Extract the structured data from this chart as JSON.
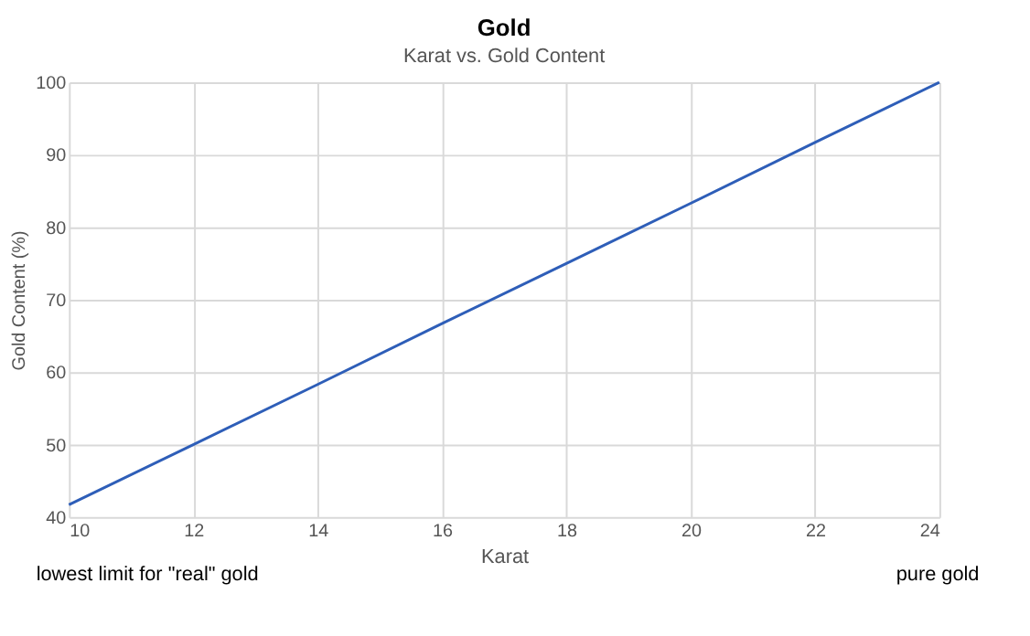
{
  "chart_data": {
    "type": "line",
    "title": "Gold",
    "subtitle": "Karat vs. Gold Content",
    "xlabel": "Karat",
    "ylabel": "Gold Content (%)",
    "x": [
      10,
      12,
      14,
      16,
      18,
      20,
      22,
      24
    ],
    "series": [
      {
        "color": "#2e5eb8",
        "values": [
          41.7,
          50,
          58.3,
          66.7,
          75,
          83.3,
          91.7,
          100
        ]
      }
    ],
    "xlim": [
      10,
      24
    ],
    "xticks": [
      10,
      12,
      14,
      16,
      18,
      20,
      22,
      24
    ],
    "ylim": [
      40,
      100
    ],
    "yticks": [
      40,
      50,
      60,
      70,
      80,
      90,
      100
    ],
    "grid": true,
    "marker": "none",
    "line_style": "solid",
    "annotations": [
      "lowest limit for  \"real\" gold",
      "pure gold"
    ]
  }
}
